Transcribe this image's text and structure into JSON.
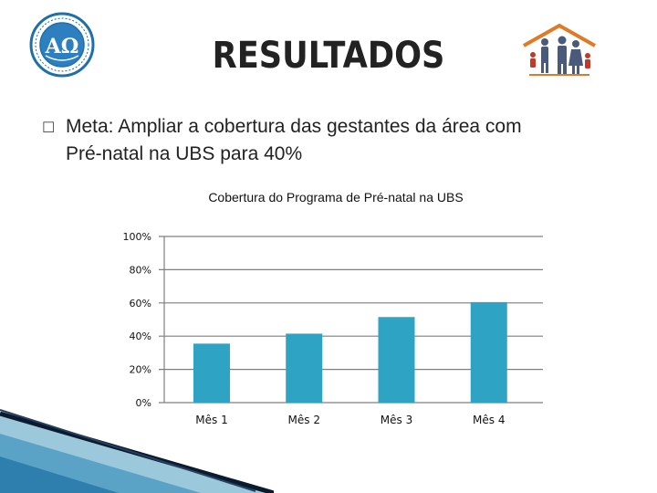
{
  "slide": {
    "title": "RESULTADOS",
    "bullet_glyph": "☐",
    "bullet_line1": "Meta: Ampliar a cobertura das gestantes da área com",
    "bullet_line2": "Pré-natal na UBS para 40%",
    "logo_left_icon": "university-seal-icon",
    "logo_right_icon": "family-house-icon"
  },
  "chart_data": {
    "type": "bar",
    "title": "Cobertura do Programa de Pré-natal na UBS",
    "categories": [
      "Mês 1",
      "Mês 2",
      "Mês 3",
      "Mês 4"
    ],
    "values": [
      0.355,
      0.415,
      0.515,
      0.605
    ],
    "ylim": [
      0,
      1
    ],
    "yticks": [
      "0%",
      "20%",
      "40%",
      "60%",
      "80%",
      "100%"
    ],
    "grid": true,
    "bar_color": "#2EA3C4",
    "grid_color": "#7F7F7F"
  },
  "colors": {
    "title": "#222222",
    "accent_blue": "#1F6FA8",
    "accent_orange": "#E07A26"
  }
}
